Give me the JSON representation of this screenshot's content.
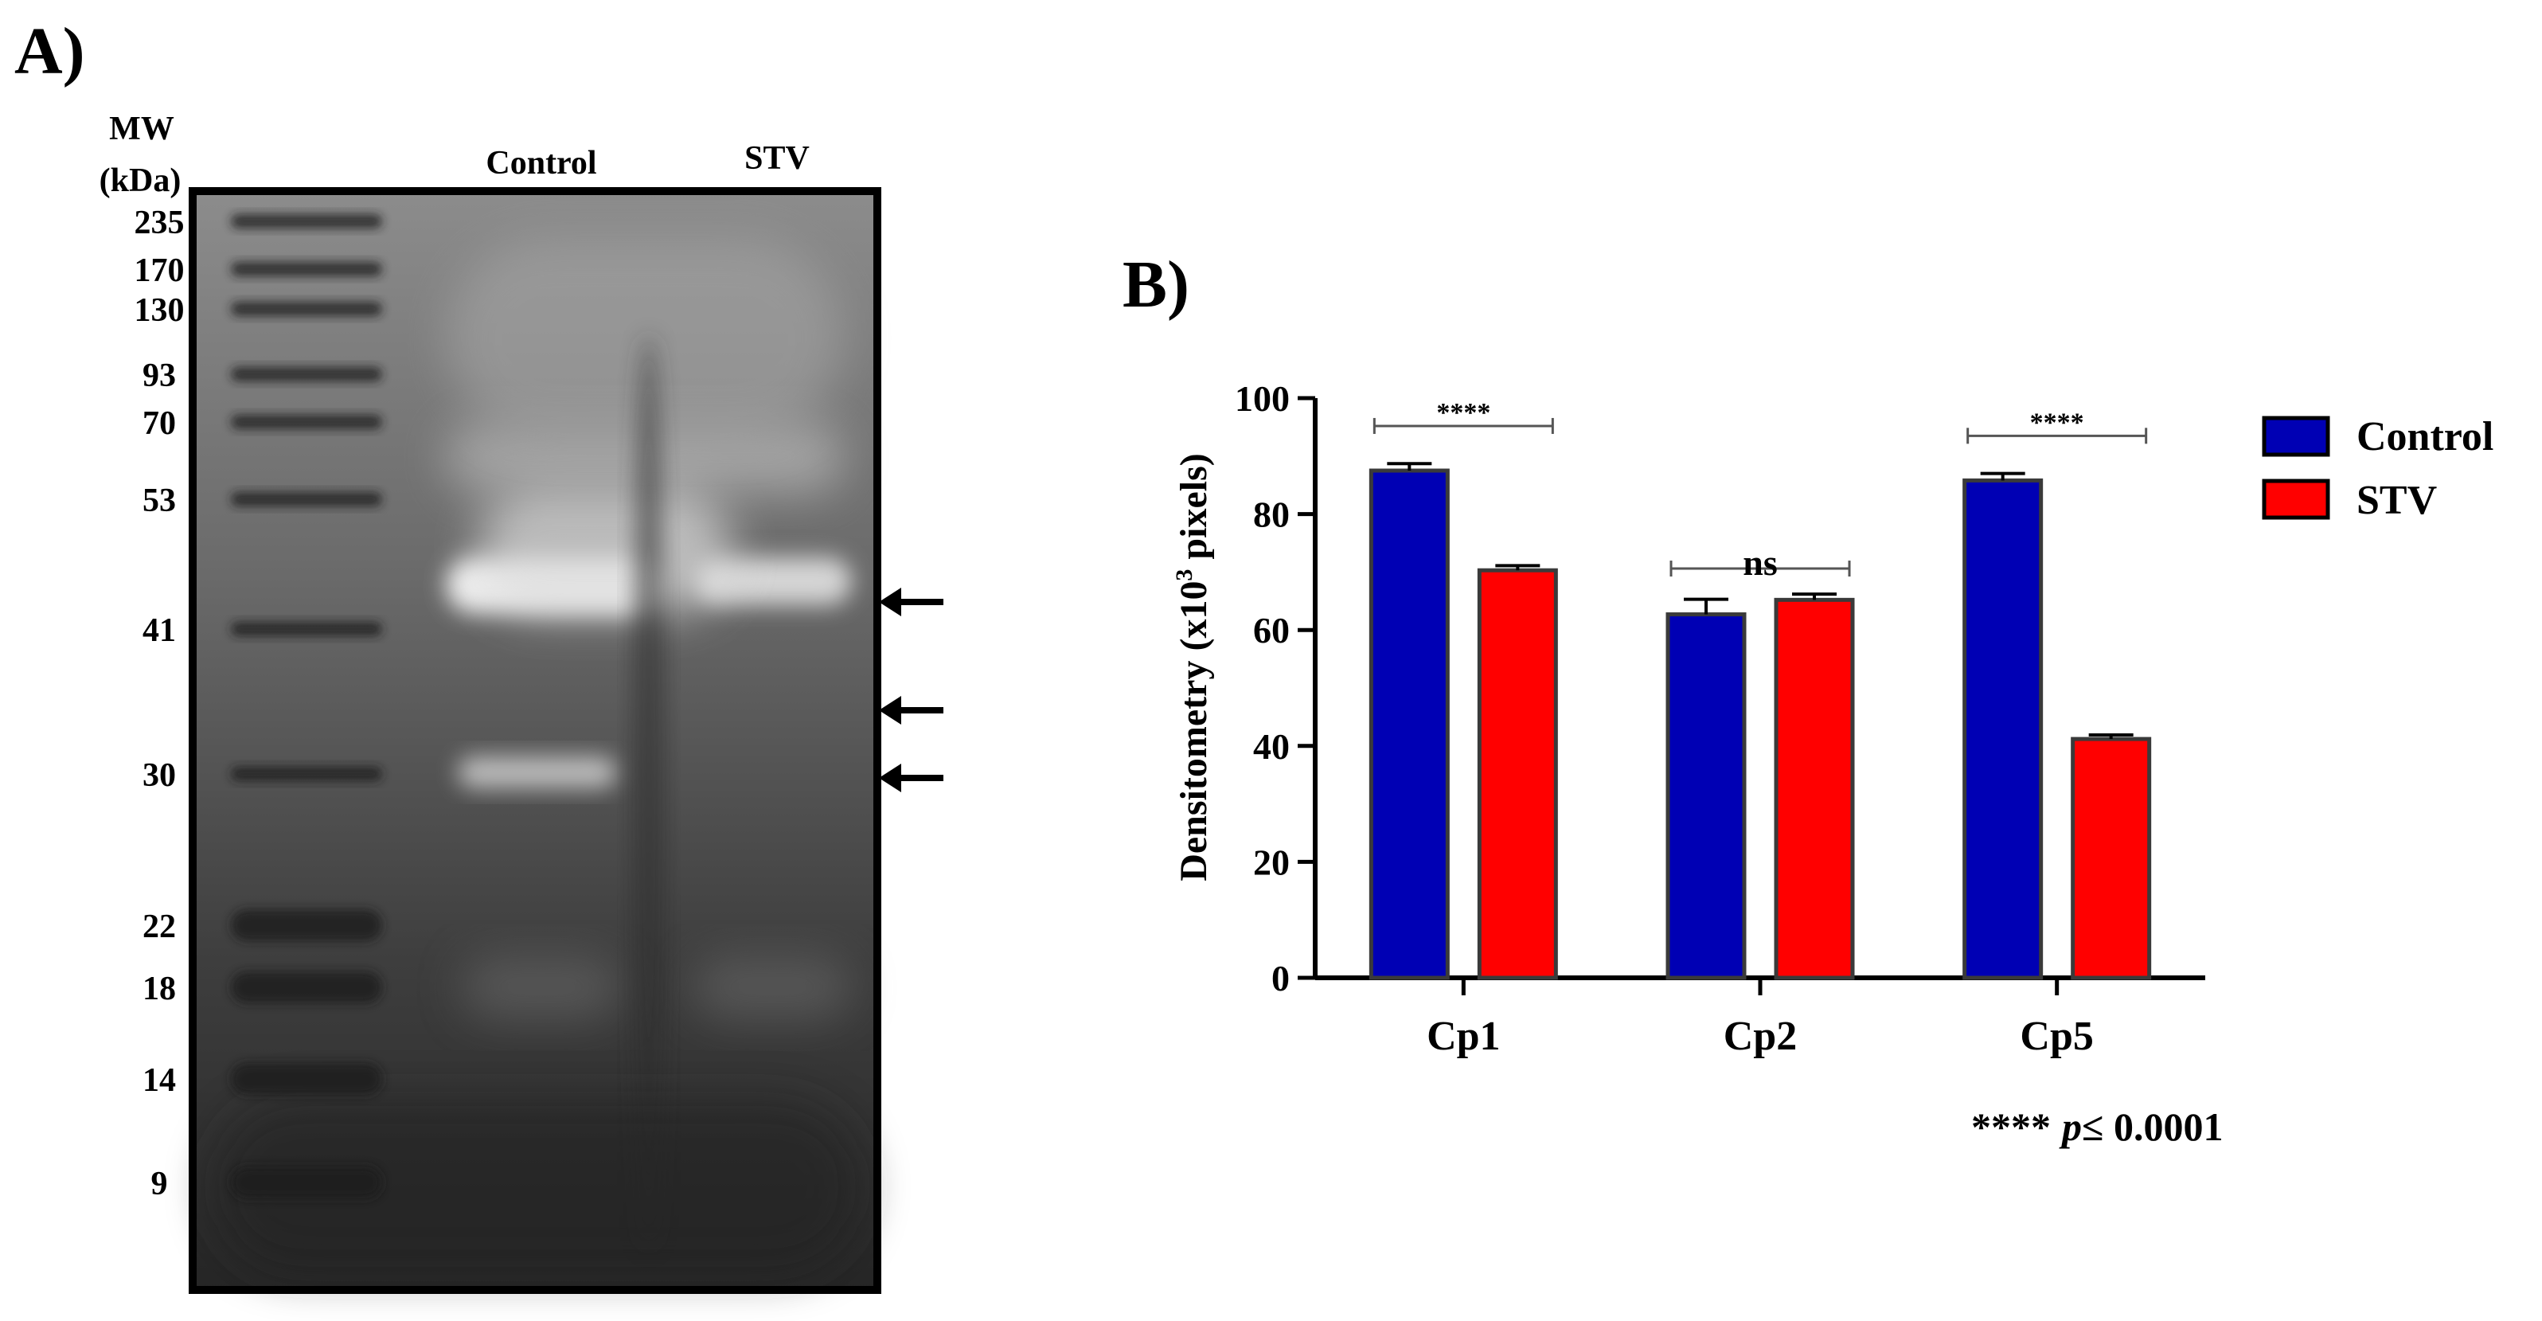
{
  "panelA": {
    "label": "A)",
    "mw_header_line1": "MW",
    "mw_header_line2": "(kDa)",
    "lane_labels": [
      "Control",
      "STV"
    ],
    "mw_markers": [
      "235",
      "170",
      "130",
      "93",
      "70",
      "53",
      "41",
      "30",
      "22",
      "18",
      "14",
      "9"
    ]
  },
  "panelB": {
    "label": "B)",
    "p_note": {
      "stars": "****",
      "p": "p",
      "rest": "≤ 0.0001"
    }
  },
  "chart_data": {
    "type": "bar",
    "categories": [
      "Cp1",
      "Cp2",
      "Cp5"
    ],
    "series": [
      {
        "name": "Control",
        "color": "#0000b4",
        "values": [
          87.5,
          62.7,
          85.8
        ],
        "errors": [
          1.2,
          2.6,
          1.2
        ]
      },
      {
        "name": "STV",
        "color": "#ff0000",
        "values": [
          70.3,
          65.2,
          41.2
        ],
        "errors": [
          0.8,
          1.0,
          0.7
        ]
      }
    ],
    "ylabel_main": "Densitometry (x10",
    "ylabel_sup": "3",
    "ylabel_end": " pixels)",
    "ylim": [
      0,
      100
    ],
    "yticks": [
      "0",
      "20",
      "40",
      "60",
      "80",
      "100"
    ],
    "legend_position": "right",
    "significance": [
      "****",
      "ns",
      "****"
    ]
  }
}
